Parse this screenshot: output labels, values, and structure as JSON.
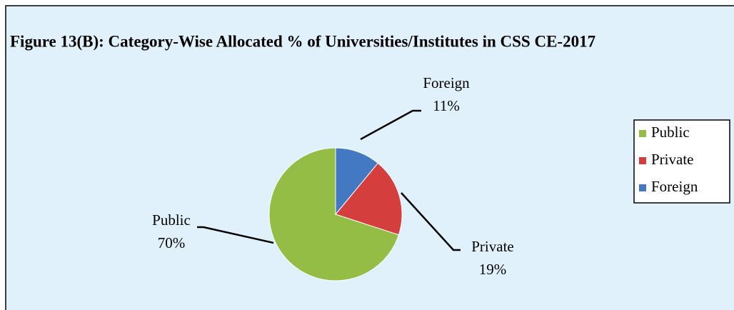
{
  "chart_data": {
    "type": "pie",
    "title": "Figure 13(B): Category-Wise Allocated % of Universities/Institutes in CSS CE-2017",
    "categories": [
      "Public",
      "Private",
      "Foreign"
    ],
    "values": [
      70,
      19,
      11
    ],
    "value_labels": [
      "70%",
      "19%",
      "11%"
    ],
    "colors": [
      "#94bd45",
      "#d43f3d",
      "#4379c2"
    ],
    "legend": "right"
  }
}
